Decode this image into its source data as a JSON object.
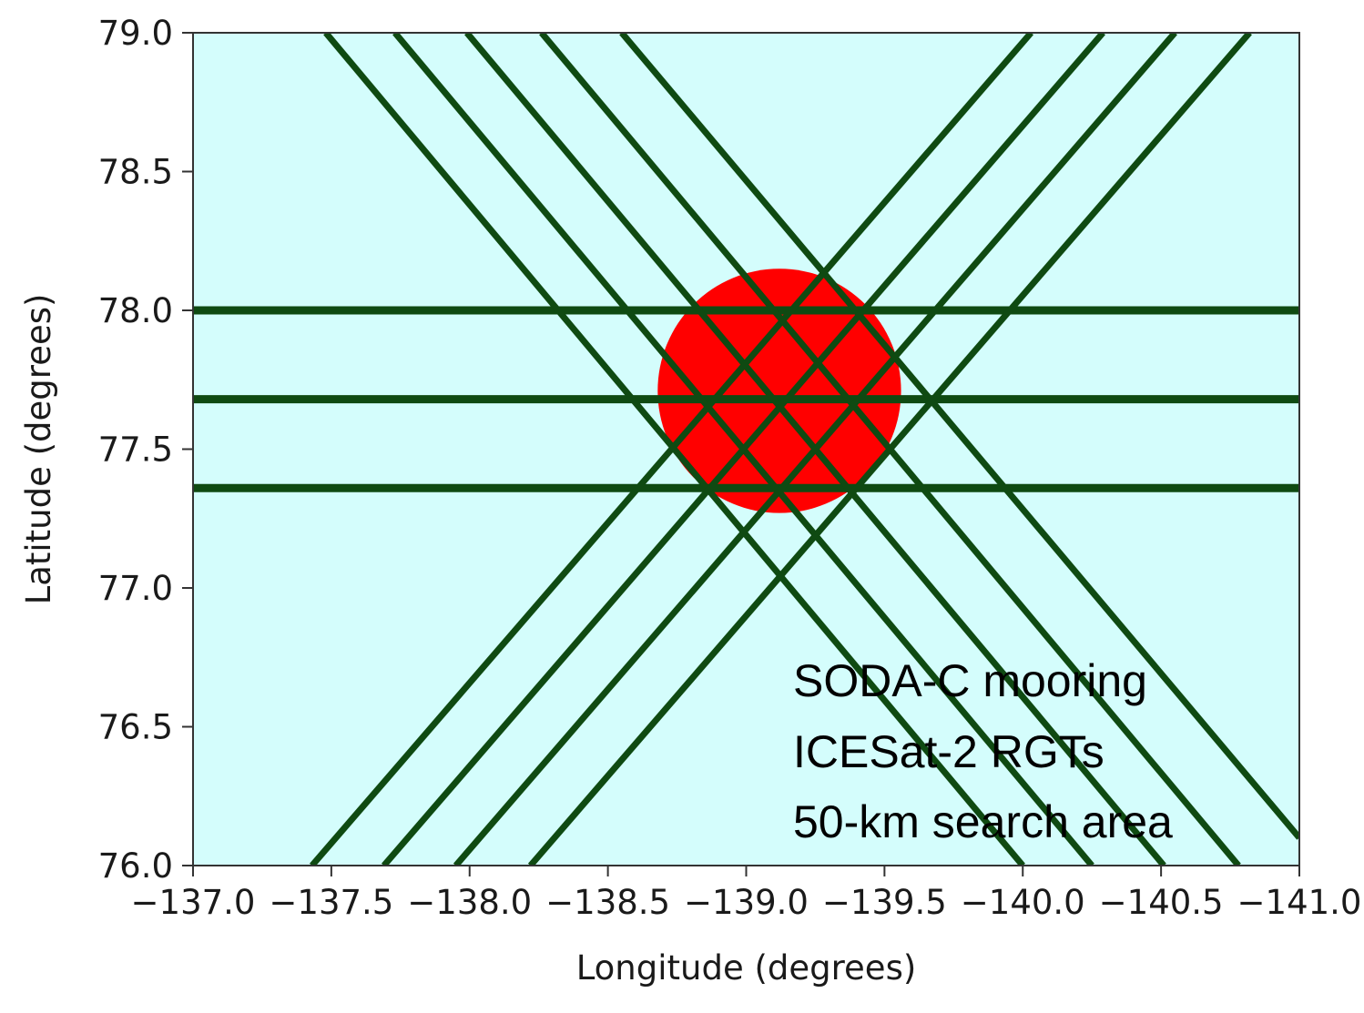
{
  "chart_data": {
    "type": "line",
    "title": "",
    "xlabel": "Longitude (degrees)",
    "ylabel": "Latitude (degrees)",
    "xlim": [
      -137.0,
      -141.0
    ],
    "ylim": [
      76.0,
      79.0
    ],
    "x_ticks": [
      -137.0,
      -137.5,
      -138.0,
      -138.5,
      -139.0,
      -139.5,
      -140.0,
      -140.5,
      -141.0
    ],
    "x_tick_labels": [
      "−137.0",
      "−137.5",
      "−138.0",
      "−138.5",
      "−139.0",
      "−139.5",
      "−140.0",
      "−140.5",
      "−141.0"
    ],
    "y_ticks": [
      76.0,
      76.5,
      77.0,
      77.5,
      78.0,
      78.5,
      79.0
    ],
    "y_tick_labels": [
      "76.0",
      "76.5",
      "77.0",
      "77.5",
      "78.0",
      "78.5",
      "79.0"
    ],
    "grid": false,
    "colors": {
      "plot_background": "#d4fdfc",
      "track_line": "#0f4a12",
      "search_area": "#ff0000",
      "axes": "#333333"
    },
    "search_area": {
      "center_lon": -139.12,
      "center_lat": 77.71,
      "radius_lon_deg": 0.44,
      "radius_lat_deg": 0.44
    },
    "horizontal_tracks": [
      {
        "lat": 78.0
      },
      {
        "lat": 77.68
      },
      {
        "lat": 77.36
      }
    ],
    "descending_tracks": [
      {
        "x1": -137.48,
        "y1": 79.0,
        "x2": -140.0,
        "y2": 76.0
      },
      {
        "x1": -137.73,
        "y1": 79.0,
        "x2": -140.25,
        "y2": 76.0
      },
      {
        "x1": -137.99,
        "y1": 79.0,
        "x2": -140.51,
        "y2": 76.0
      },
      {
        "x1": -138.26,
        "y1": 79.0,
        "x2": -140.78,
        "y2": 76.0
      },
      {
        "x1": -138.55,
        "y1": 79.0,
        "x2": -141.0,
        "y2": 76.1
      }
    ],
    "ascending_tracks": [
      {
        "x1": -137.43,
        "y1": 76.0,
        "x2": -140.03,
        "y2": 79.0
      },
      {
        "x1": -137.69,
        "y1": 76.0,
        "x2": -140.29,
        "y2": 79.0
      },
      {
        "x1": -137.95,
        "y1": 76.0,
        "x2": -140.55,
        "y2": 79.0
      },
      {
        "x1": -138.22,
        "y1": 76.0,
        "x2": -140.82,
        "y2": 79.0
      }
    ],
    "annotations": [
      "SODA-C mooring",
      "ICESat-2 RGTs",
      "50-km search area"
    ]
  }
}
